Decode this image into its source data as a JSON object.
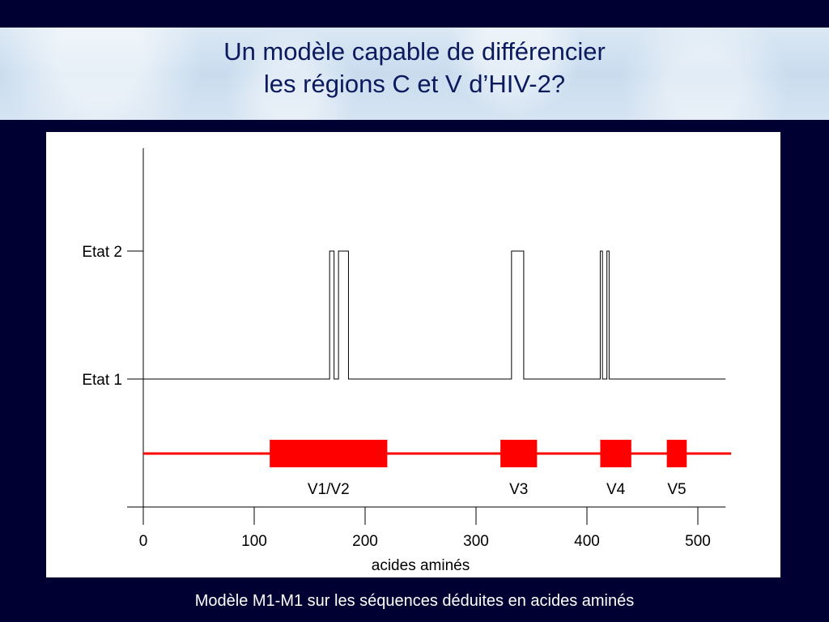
{
  "slide": {
    "title_line1": "Un modèle capable de différencier",
    "title_line2": "les régions C et V d’HIV-2?",
    "caption": "Modèle M1-M1 sur les séquences déduites en acides aminés"
  },
  "chart_data": {
    "type": "line",
    "xlabel": "acides aminés",
    "xlim": [
      0,
      525
    ],
    "x_ticks": [
      0,
      100,
      200,
      300,
      400,
      500
    ],
    "y_ticks": [
      "Etat 1",
      "Etat 2"
    ],
    "state_series": {
      "x": [
        0,
        168,
        168,
        172,
        172,
        176,
        176,
        185,
        185,
        332,
        332,
        343,
        343,
        412,
        412,
        414,
        414,
        418,
        418,
        420,
        420,
        525
      ],
      "state": [
        1,
        1,
        2,
        2,
        1,
        1,
        2,
        2,
        1,
        1,
        2,
        2,
        1,
        1,
        2,
        2,
        1,
        1,
        2,
        2,
        1,
        1
      ]
    },
    "regions": {
      "color": "#ff0000",
      "line_range": [
        0,
        530
      ],
      "blocks": [
        {
          "label": "V1/V2",
          "start": 114,
          "end": 220
        },
        {
          "label": "V3",
          "start": 322,
          "end": 355
        },
        {
          "label": "V4",
          "start": 412,
          "end": 440
        },
        {
          "label": "V5",
          "start": 472,
          "end": 490
        }
      ]
    }
  }
}
